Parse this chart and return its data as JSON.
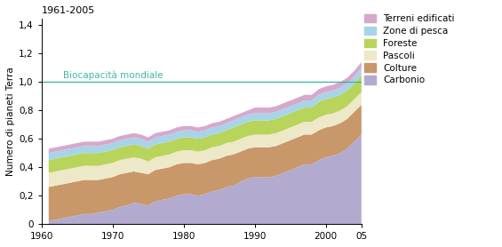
{
  "title": "1961-2005",
  "ylabel": "Numero di pianeti Terra",
  "biocapacity_label": "Biocapacità mondiale",
  "biocapacity_value": 1.0,
  "xlim": [
    1960,
    2005
  ],
  "ylim": [
    0,
    1.45
  ],
  "yticks": [
    0,
    0.2,
    0.4,
    0.6,
    0.8,
    1.0,
    1.2,
    1.4
  ],
  "ytick_labels": [
    "0",
    "0,2",
    "0,4",
    "0,6",
    "0,8",
    "1,0",
    "1,2",
    "1,4"
  ],
  "xtick_positions": [
    1960,
    1970,
    1980,
    1990,
    2000,
    2005
  ],
  "xtick_labels": [
    "1960",
    "1970",
    "1980",
    "1990",
    "2000",
    "05"
  ],
  "legend_labels": [
    "Terreni edificati",
    "Zone di pesca",
    "Foreste",
    "Pascoli",
    "Colture",
    "Carbonio"
  ],
  "colors": {
    "Carbonio": "#b3aad0",
    "Colture": "#c8976a",
    "Pascoli": "#ede8c8",
    "Foreste": "#b8d45a",
    "Zone di pesca": "#a8d4e8",
    "Terreni edificati": "#d8a8cc"
  },
  "years": [
    1961,
    1962,
    1963,
    1964,
    1965,
    1966,
    1967,
    1968,
    1969,
    1970,
    1971,
    1972,
    1973,
    1974,
    1975,
    1976,
    1977,
    1978,
    1979,
    1980,
    1981,
    1982,
    1983,
    1984,
    1985,
    1986,
    1987,
    1988,
    1989,
    1990,
    1991,
    1992,
    1993,
    1994,
    1995,
    1996,
    1997,
    1998,
    1999,
    2000,
    2001,
    2002,
    2003,
    2004,
    2005
  ],
  "Carbonio": [
    0.02,
    0.03,
    0.04,
    0.05,
    0.06,
    0.07,
    0.07,
    0.08,
    0.09,
    0.1,
    0.12,
    0.13,
    0.15,
    0.14,
    0.13,
    0.16,
    0.17,
    0.18,
    0.2,
    0.21,
    0.21,
    0.2,
    0.21,
    0.23,
    0.24,
    0.26,
    0.27,
    0.3,
    0.32,
    0.33,
    0.33,
    0.33,
    0.34,
    0.36,
    0.38,
    0.4,
    0.42,
    0.42,
    0.45,
    0.47,
    0.48,
    0.5,
    0.53,
    0.58,
    0.63
  ],
  "Colture": [
    0.24,
    0.24,
    0.24,
    0.24,
    0.24,
    0.24,
    0.24,
    0.23,
    0.23,
    0.23,
    0.23,
    0.23,
    0.22,
    0.22,
    0.22,
    0.22,
    0.22,
    0.22,
    0.22,
    0.22,
    0.22,
    0.22,
    0.22,
    0.22,
    0.22,
    0.22,
    0.22,
    0.21,
    0.21,
    0.21,
    0.21,
    0.21,
    0.21,
    0.21,
    0.21,
    0.21,
    0.21,
    0.21,
    0.21,
    0.21,
    0.21,
    0.21,
    0.21,
    0.21,
    0.21
  ],
  "Pascoli": [
    0.1,
    0.1,
    0.1,
    0.1,
    0.1,
    0.1,
    0.1,
    0.1,
    0.1,
    0.1,
    0.1,
    0.1,
    0.1,
    0.1,
    0.09,
    0.09,
    0.09,
    0.09,
    0.09,
    0.09,
    0.09,
    0.09,
    0.09,
    0.09,
    0.09,
    0.09,
    0.09,
    0.09,
    0.09,
    0.09,
    0.09,
    0.09,
    0.09,
    0.09,
    0.09,
    0.09,
    0.09,
    0.09,
    0.09,
    0.09,
    0.09,
    0.09,
    0.09,
    0.09,
    0.09
  ],
  "Foreste": [
    0.09,
    0.09,
    0.09,
    0.09,
    0.09,
    0.09,
    0.09,
    0.09,
    0.09,
    0.09,
    0.09,
    0.09,
    0.09,
    0.09,
    0.09,
    0.09,
    0.09,
    0.09,
    0.09,
    0.09,
    0.09,
    0.09,
    0.09,
    0.09,
    0.09,
    0.09,
    0.1,
    0.1,
    0.1,
    0.1,
    0.1,
    0.1,
    0.1,
    0.1,
    0.1,
    0.1,
    0.1,
    0.1,
    0.11,
    0.11,
    0.11,
    0.11,
    0.11,
    0.11,
    0.12
  ],
  "Zone di pesca": [
    0.05,
    0.05,
    0.05,
    0.05,
    0.05,
    0.05,
    0.05,
    0.05,
    0.05,
    0.05,
    0.05,
    0.05,
    0.05,
    0.05,
    0.05,
    0.05,
    0.05,
    0.05,
    0.05,
    0.05,
    0.05,
    0.05,
    0.05,
    0.05,
    0.05,
    0.05,
    0.05,
    0.05,
    0.05,
    0.05,
    0.05,
    0.05,
    0.05,
    0.05,
    0.05,
    0.05,
    0.05,
    0.05,
    0.05,
    0.05,
    0.05,
    0.05,
    0.05,
    0.05,
    0.05
  ],
  "Terreni edificati": [
    0.03,
    0.03,
    0.03,
    0.03,
    0.03,
    0.03,
    0.03,
    0.03,
    0.03,
    0.03,
    0.03,
    0.03,
    0.03,
    0.03,
    0.03,
    0.03,
    0.03,
    0.03,
    0.03,
    0.03,
    0.03,
    0.03,
    0.03,
    0.03,
    0.03,
    0.03,
    0.03,
    0.03,
    0.03,
    0.04,
    0.04,
    0.04,
    0.04,
    0.04,
    0.04,
    0.04,
    0.04,
    0.04,
    0.04,
    0.04,
    0.04,
    0.04,
    0.04,
    0.04,
    0.04
  ]
}
